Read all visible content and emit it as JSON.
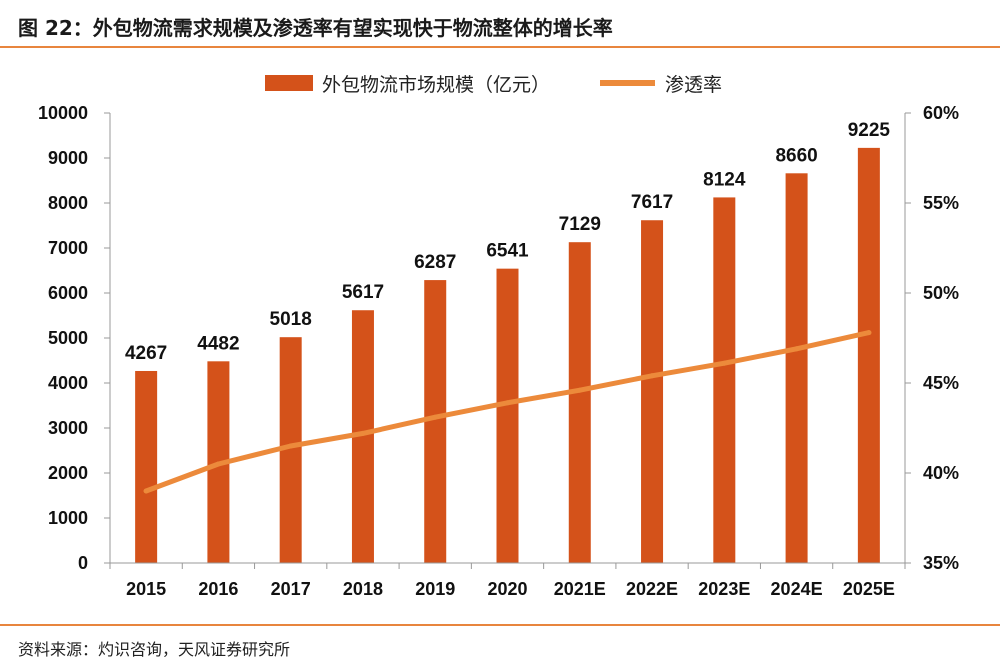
{
  "figure_title": "图 22：外包物流需求规模及渗透率有望实现快于物流整体的增长率",
  "source": "资料来源：灼识咨询，天风证券研究所",
  "colors": {
    "bar": "#d4521a",
    "line": "#ec8a3b",
    "rule": "#e8853d"
  },
  "chart_data": {
    "type": "bar+line",
    "categories": [
      "2015",
      "2016",
      "2017",
      "2018",
      "2019",
      "2020",
      "2021E",
      "2022E",
      "2023E",
      "2024E",
      "2025E"
    ],
    "series": [
      {
        "name": "外包物流市场规模（亿元）",
        "type": "bar",
        "axis": "left",
        "values": [
          4267,
          4482,
          5018,
          5617,
          6287,
          6541,
          7129,
          7617,
          8124,
          8660,
          9225
        ]
      },
      {
        "name": "渗透率",
        "type": "line",
        "axis": "right",
        "values": [
          0.39,
          0.405,
          0.415,
          0.422,
          0.431,
          0.439,
          0.446,
          0.454,
          0.461,
          0.469,
          0.478
        ]
      }
    ],
    "left_axis": {
      "ylim": [
        0,
        10000
      ],
      "ticks": [
        "0",
        "1000",
        "2000",
        "3000",
        "4000",
        "5000",
        "6000",
        "7000",
        "8000",
        "9000",
        "10000"
      ]
    },
    "right_axis": {
      "ylim": [
        0.35,
        0.6
      ],
      "ticks": [
        "35%",
        "40%",
        "45%",
        "50%",
        "55%",
        "60%"
      ]
    },
    "grid": false,
    "legend_position": "top"
  }
}
